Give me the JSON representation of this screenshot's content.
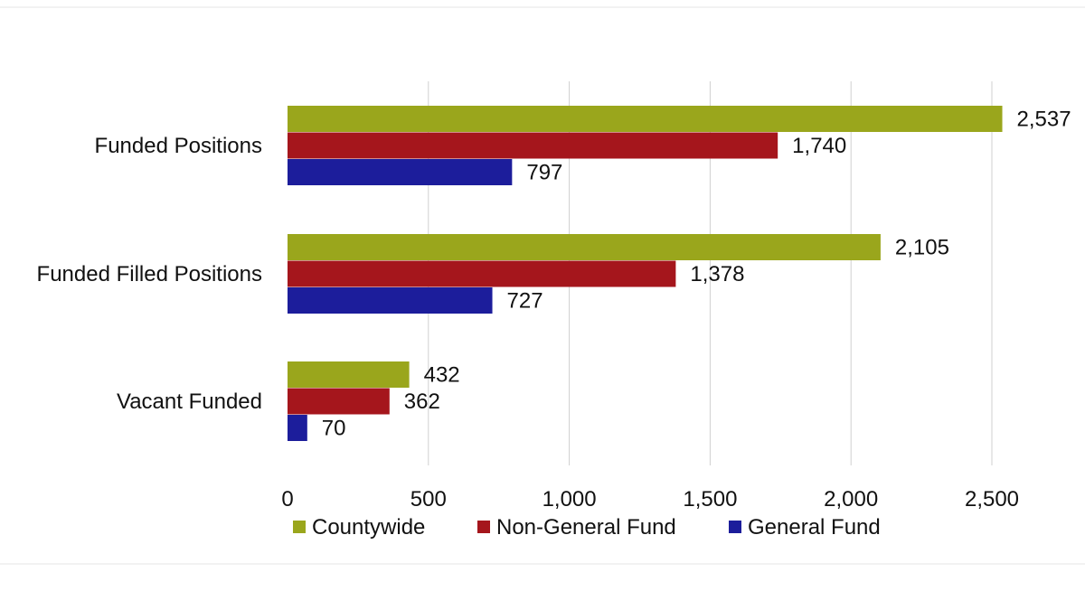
{
  "chart_data": {
    "type": "bar",
    "orientation": "horizontal",
    "categories": [
      "Funded Positions",
      "Funded Filled Positions",
      "Vacant Funded"
    ],
    "series": [
      {
        "name": "Countywide",
        "color": "#9aa61c",
        "values": [
          2537,
          2105,
          432
        ],
        "labels": [
          "2,537",
          "2,105",
          "432"
        ]
      },
      {
        "name": "Non-General Fund",
        "color": "#a5161c",
        "values": [
          1740,
          1378,
          362
        ],
        "labels": [
          "1,740",
          "1,378",
          "362"
        ]
      },
      {
        "name": "General Fund",
        "color": "#1c1d9b",
        "values": [
          797,
          727,
          70
        ],
        "labels": [
          "797",
          "727",
          "70"
        ]
      }
    ],
    "xlim": [
      0,
      2500
    ],
    "xticks": [
      0,
      500,
      1000,
      1500,
      2000,
      2500
    ],
    "xtick_labels": [
      "0",
      "500",
      "1,000",
      "1,500",
      "2,000",
      "2,500"
    ],
    "grid": true,
    "legend_position": "bottom",
    "title": "",
    "xlabel": "",
    "ylabel": ""
  }
}
